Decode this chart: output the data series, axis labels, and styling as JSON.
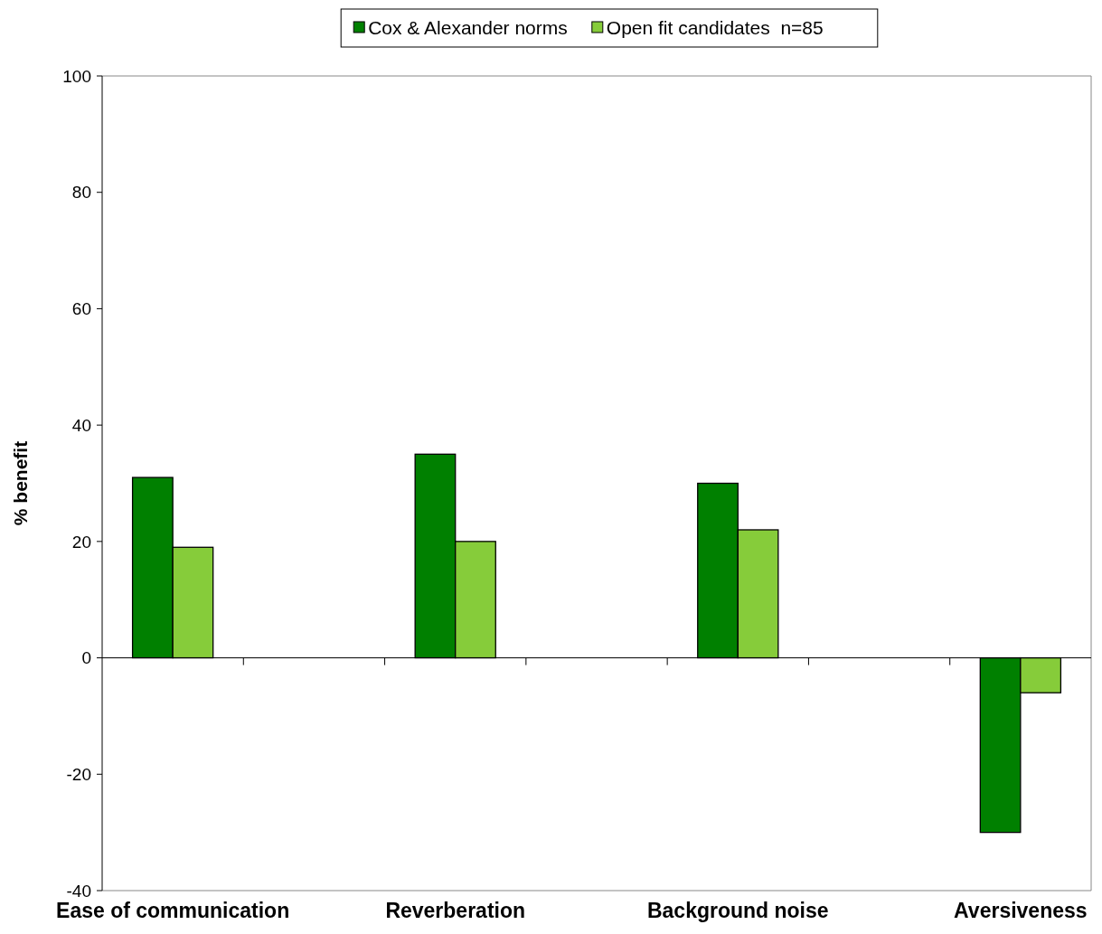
{
  "chart_data": {
    "type": "bar",
    "ylabel": "% benefit",
    "categories": [
      "Ease of communication",
      null,
      "Reverberation",
      null,
      "Background noise",
      null,
      "Aversiveness"
    ],
    "series": [
      {
        "name": "Cox & Alexander norms",
        "color": "#008000",
        "values": [
          31,
          null,
          35,
          null,
          30,
          null,
          -30
        ]
      },
      {
        "name": "Open fit candidates  n=85",
        "color": "#86cc3a",
        "values": [
          19,
          null,
          20,
          null,
          22,
          null,
          -6
        ]
      }
    ],
    "ylim": [
      -40,
      100
    ],
    "yticks": [
      -40,
      -20,
      0,
      20,
      40,
      60,
      80,
      100
    ],
    "legend": "top"
  }
}
